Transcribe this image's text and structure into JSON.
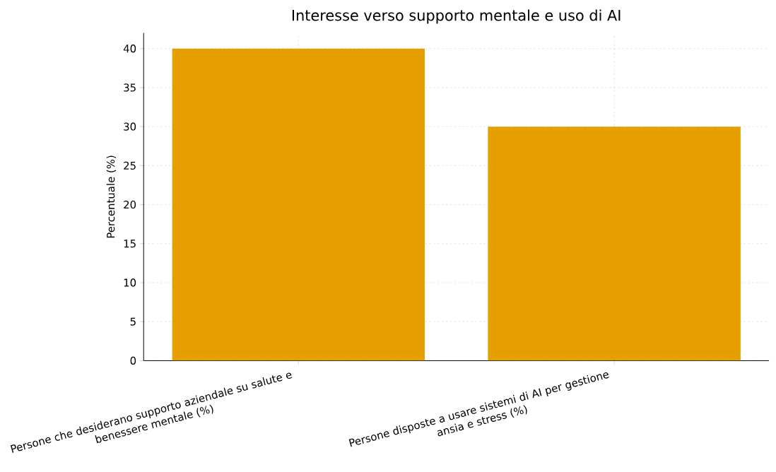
{
  "chart_data": {
    "type": "bar",
    "title": "Interesse verso supporto mentale e uso di AI",
    "ylabel": "Percentuale (%)",
    "categories": [
      "Persone che desiderano supporto aziendale su salute e benessere mentale (%)",
      "Persone disposte a usare sistemi di AI per gestione ansia e stress (%)"
    ],
    "values": [
      40,
      30
    ],
    "color": "#e69f00",
    "ylim": [
      0,
      42
    ],
    "yticks": [
      0,
      5,
      10,
      15,
      20,
      25,
      30,
      35,
      40
    ],
    "grid": true
  }
}
